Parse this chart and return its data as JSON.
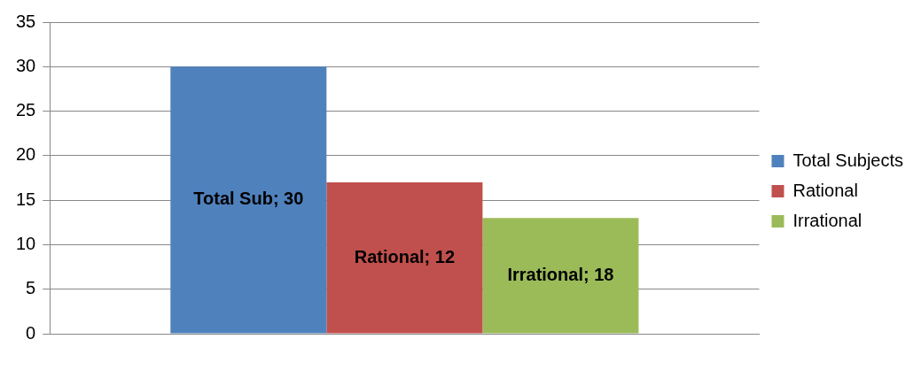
{
  "chart_data": {
    "type": "bar",
    "categories": [
      null
    ],
    "series": [
      {
        "name": "Total Subjects",
        "color": "#4f81bd",
        "values": [
          30
        ]
      },
      {
        "name": "Rational",
        "color": "#c0504d",
        "values": [
          17
        ]
      },
      {
        "name": "Irrational",
        "color": "#9bbb59",
        "values": [
          13
        ]
      }
    ],
    "annotations": [
      "Total Sub; 30",
      "Rational; 12",
      "Irrational; 18"
    ],
    "ylim": [
      0,
      35
    ],
    "yticks": [
      0,
      5,
      10,
      15,
      20,
      25,
      30,
      35
    ],
    "grid": "y",
    "legend": "right"
  }
}
